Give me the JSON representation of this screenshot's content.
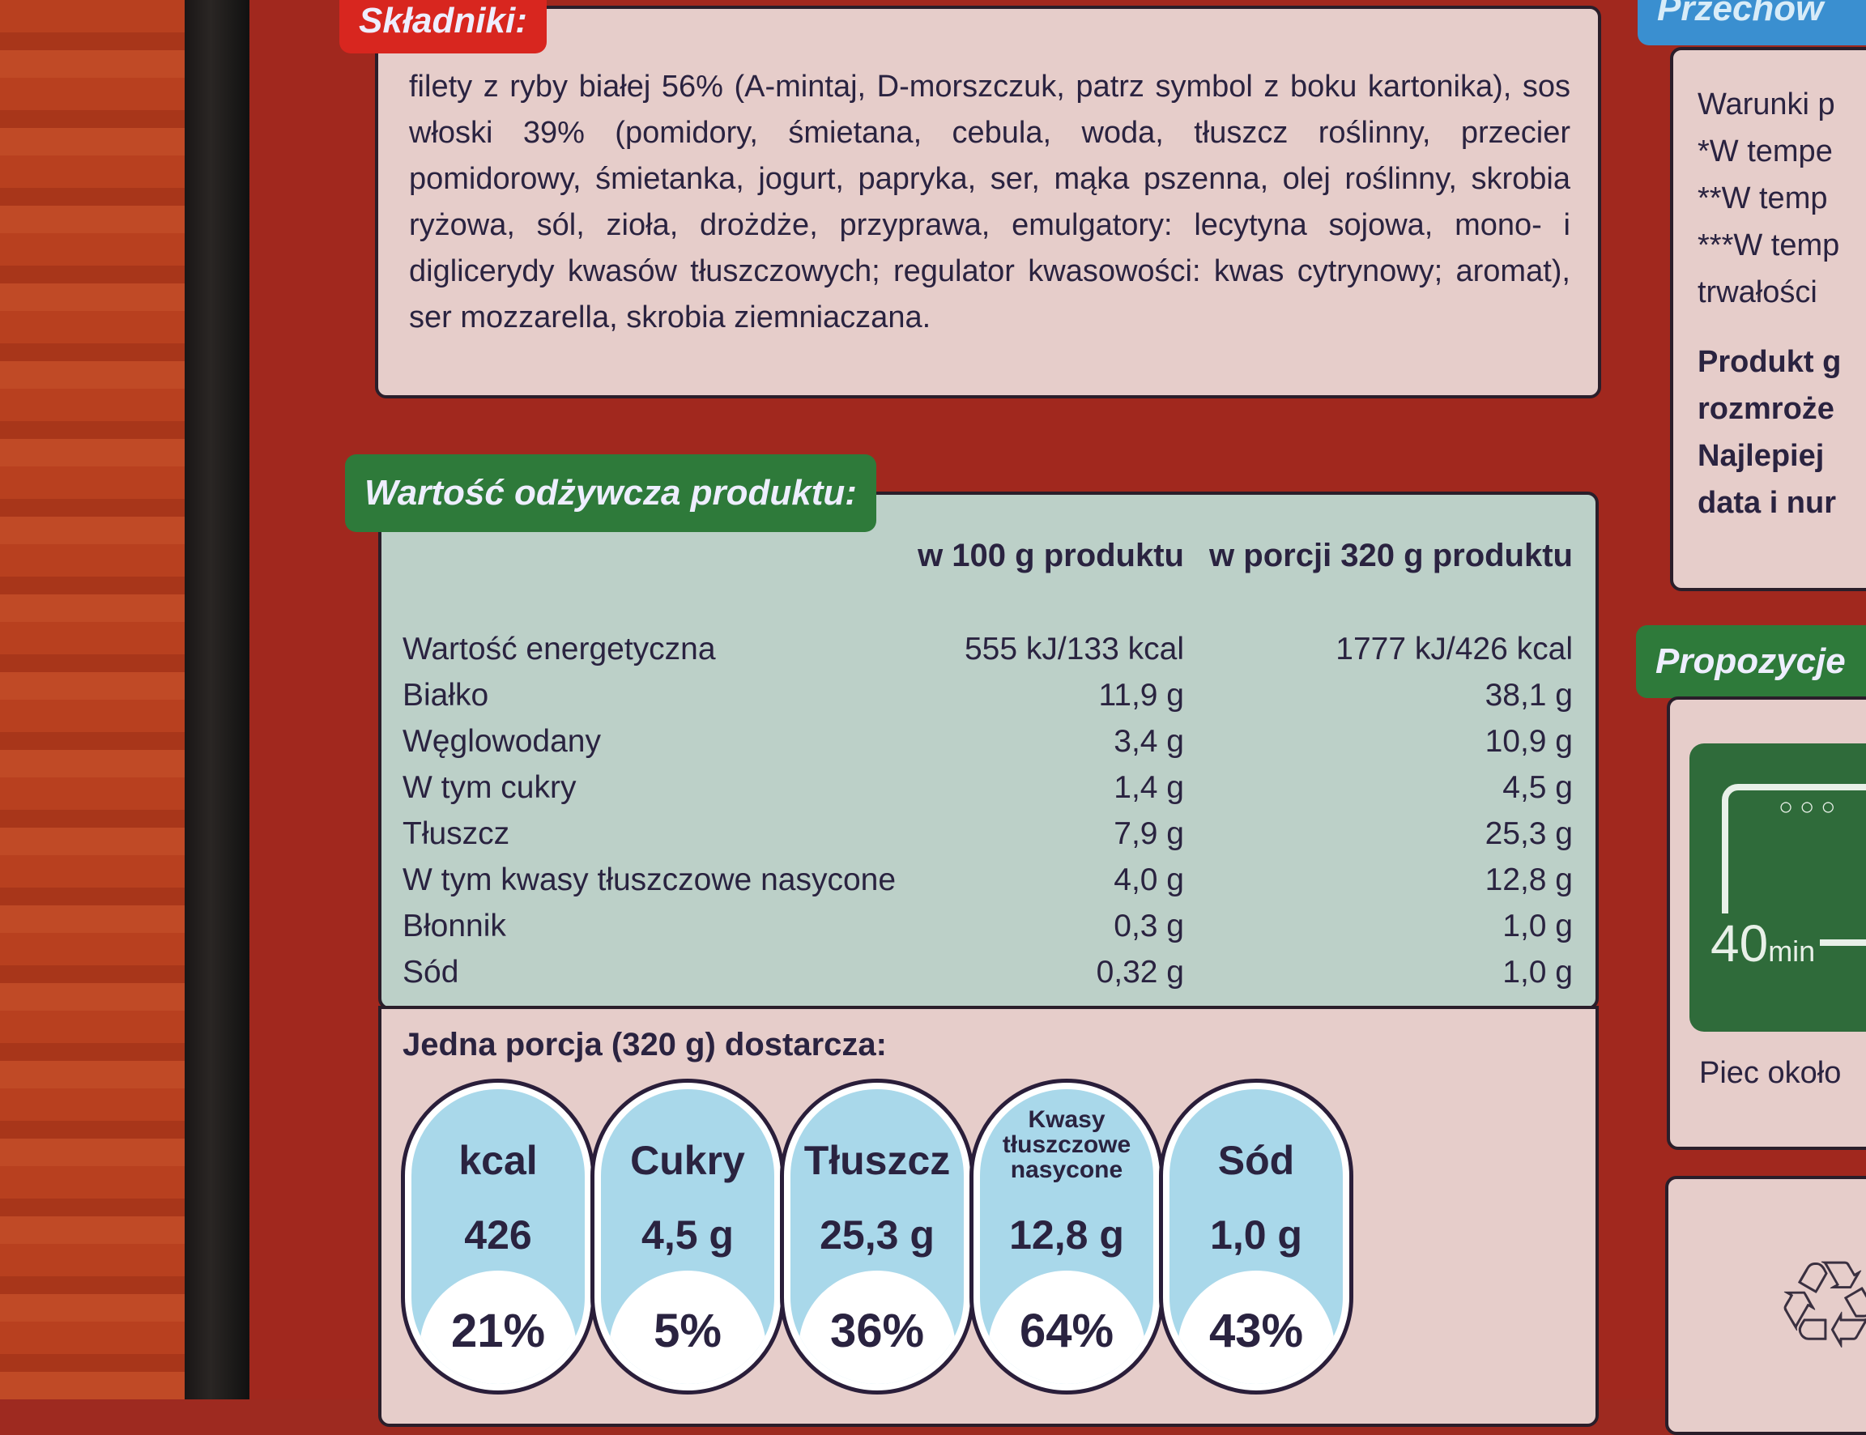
{
  "ingredients": {
    "label": "Składniki:",
    "text": "filety z ryby białej 56% (A-mintaj, D-morszczuk, patrz symbol z boku kartonika), sos włoski 39% (pomidory, śmietana, cebula, woda, tłuszcz roślinny, przecier pomidorowy, śmietanka, jogurt, papryka, ser, mąka pszenna, olej roślinny, skrobia ryżowa, sól, zioła, drożdże, przyprawa, emulgatory: lecytyna sojowa, mono- i diglicerydy kwasów tłuszczowych; regulator kwasowości: kwas cytrynowy; aromat), ser mozzarella, skrobia ziemniaczana."
  },
  "nutrition": {
    "label": "Wartość odżywcza produktu:",
    "col_a": "w 100 g produktu",
    "col_b": "w porcji 320 g produktu",
    "rows": [
      {
        "name": "Wartość energetyczna",
        "a": "555 kJ/133 kcal",
        "b": "1777 kJ/426 kcal"
      },
      {
        "name": "Białko",
        "a": "11,9 g",
        "b": "38,1 g"
      },
      {
        "name": "Węglowodany",
        "a": "3,4 g",
        "b": "10,9 g"
      },
      {
        "name": "W tym cukry",
        "a": "1,4 g",
        "b": "4,5 g"
      },
      {
        "name": "Tłuszcz",
        "a": "7,9 g",
        "b": "25,3 g"
      },
      {
        "name": "W tym kwasy tłuszczowe nasycone",
        "a": "4,0 g",
        "b": "12,8 g"
      },
      {
        "name": "Błonnik",
        "a": "0,3 g",
        "b": "1,0 g"
      },
      {
        "name": "Sód",
        "a": "0,32 g",
        "b": "1,0 g"
      }
    ]
  },
  "gda": {
    "title": "Jedna porcja (320 g) dostarcza:",
    "items": [
      {
        "label": "kcal",
        "value": "426",
        "percent": "21%"
      },
      {
        "label": "Cukry",
        "value": "4,5 g",
        "percent": "5%"
      },
      {
        "label": "Tłuszcz",
        "value": "25,3 g",
        "percent": "36%"
      },
      {
        "label": "Kwasy tłuszczowe nasycone",
        "value": "12,8 g",
        "percent": "64%"
      },
      {
        "label": "Sód",
        "value": "1,0 g",
        "percent": "43%"
      }
    ]
  },
  "storage": {
    "label": "Przechow",
    "lines": [
      "Warunki p",
      "*W tempe",
      "**W temp",
      "***W temp",
      "trwałości"
    ],
    "bold_lines": [
      "Produkt g",
      "rozmroże",
      "Najlepiej",
      "data i nur"
    ]
  },
  "serving": {
    "label": "Propozycje",
    "oven_time": "40",
    "oven_unit": "min",
    "caption": "Piec około"
  },
  "colors": {
    "red_tab": "#d8261f",
    "green_tab": "#2e7a3a",
    "blue_tab": "#3a8fd0",
    "table_bg": "#bcd0c8",
    "gda_blue": "#a9d8ea"
  }
}
